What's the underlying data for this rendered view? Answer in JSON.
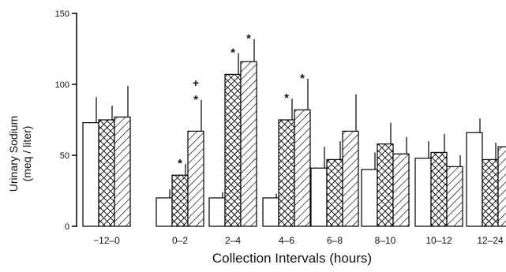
{
  "chart_data": {
    "type": "bar",
    "title": "",
    "xlabel": "Collection Intervals (hours)",
    "ylabel_lines": [
      "Urinary Sodium",
      "(meq / liter)"
    ],
    "ylim": [
      0,
      150
    ],
    "yticks": [
      0,
      50,
      100,
      150
    ],
    "categories": [
      "−12–0",
      "0–2",
      "2–4",
      "4–6",
      "6–8",
      "8–10",
      "10–12",
      "12–24"
    ],
    "series": [
      {
        "pattern": "open",
        "values": [
          73,
          20,
          20,
          20,
          41,
          40,
          48,
          66
        ],
        "errors": [
          18,
          6,
          4,
          3,
          15,
          12,
          12,
          10
        ],
        "annotations": [
          "",
          "",
          "",
          "",
          "",
          "",
          "",
          ""
        ]
      },
      {
        "pattern": "crosshatch",
        "values": [
          75,
          36,
          107,
          75,
          47,
          58,
          52,
          47
        ],
        "errors": [
          10,
          8,
          15,
          15,
          13,
          15,
          13,
          12
        ],
        "annotations": [
          "",
          "*",
          "*",
          "*",
          "",
          "",
          "",
          ""
        ]
      },
      {
        "pattern": "diagonal",
        "values": [
          77,
          67,
          116,
          82,
          67,
          51,
          42,
          56
        ],
        "errors": [
          22,
          22,
          16,
          22,
          26,
          12,
          8,
          13
        ],
        "annotations": [
          "",
          "+*",
          "*",
          "*",
          "",
          "",
          "",
          ""
        ]
      }
    ],
    "grid": false,
    "legend": "none"
  }
}
